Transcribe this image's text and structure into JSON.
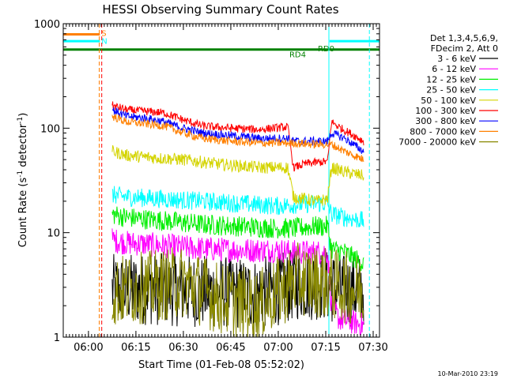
{
  "chart_data": {
    "type": "line",
    "title": "HESSI Observing Summary Count Rates",
    "xlabel": "Start Time (01-Feb-08 05:52:02)",
    "ylabel_main": "Count Rate (s",
    "ylabel_sup1": "-1",
    "ylabel_mid": " detector",
    "ylabel_sup2": "-1",
    "ylabel_end": ")",
    "yscale": "log",
    "ylim": [
      1,
      1000
    ],
    "xlim": [
      5.8672,
      7.5333
    ],
    "x_ticks": [
      {
        "value": 6.0,
        "label": "06:00"
      },
      {
        "value": 6.25,
        "label": "06:15"
      },
      {
        "value": 6.5,
        "label": "06:30"
      },
      {
        "value": 6.75,
        "label": "06:45"
      },
      {
        "value": 7.0,
        "label": "07:00"
      },
      {
        "value": 7.25,
        "label": "07:15"
      },
      {
        "value": 7.5,
        "label": "07:30"
      }
    ],
    "y_ticks": [
      {
        "value": 1,
        "label": "1"
      },
      {
        "value": 10,
        "label": "10"
      },
      {
        "value": 100,
        "label": "100"
      },
      {
        "value": 1000,
        "label": "1000"
      }
    ],
    "legend_header": [
      "Det 1,3,4,5,6,9,",
      "FDecim 2, Att 0"
    ],
    "legend_placement": "right",
    "series": [
      {
        "name": "3 - 6 keV",
        "color": "#000000",
        "noise": 0.35,
        "points": [
          [
            6.125,
            2.8
          ],
          [
            6.3,
            2.9
          ],
          [
            6.5,
            2.8
          ],
          [
            6.7,
            2.7
          ],
          [
            6.9,
            2.6
          ],
          [
            7.1,
            3.2
          ],
          [
            7.22,
            3.2
          ],
          [
            7.35,
            2.8
          ],
          [
            7.45,
            2.8
          ]
        ]
      },
      {
        "name": "6 - 12 keV",
        "color": "#ff00ff",
        "noise": 0.12,
        "points": [
          [
            6.125,
            8.5
          ],
          [
            6.2,
            8.0
          ],
          [
            6.4,
            7.5
          ],
          [
            6.6,
            7.0
          ],
          [
            6.8,
            6.8
          ],
          [
            7.0,
            6.8
          ],
          [
            7.08,
            6.5
          ],
          [
            7.2,
            6.5
          ],
          [
            7.26,
            6.5
          ],
          [
            7.28,
            2.0
          ],
          [
            7.32,
            1.5
          ],
          [
            7.45,
            1.3
          ]
        ]
      },
      {
        "name": "12 - 25 keV",
        "color": "#00ee00",
        "noise": 0.1,
        "points": [
          [
            6.125,
            15.0
          ],
          [
            6.2,
            14.0
          ],
          [
            6.4,
            13.0
          ],
          [
            6.6,
            12.0
          ],
          [
            6.8,
            11.5
          ],
          [
            7.0,
            11.0
          ],
          [
            7.08,
            11.0
          ],
          [
            7.2,
            11.5
          ],
          [
            7.26,
            11.5
          ],
          [
            7.28,
            7.0
          ],
          [
            7.35,
            6.5
          ],
          [
            7.45,
            5.0
          ]
        ]
      },
      {
        "name": "25 - 50 keV",
        "color": "#00ffff",
        "noise": 0.09,
        "points": [
          [
            6.125,
            23.0
          ],
          [
            6.2,
            22.0
          ],
          [
            6.4,
            21.0
          ],
          [
            6.6,
            20.0
          ],
          [
            6.8,
            19.0
          ],
          [
            7.0,
            18.0
          ],
          [
            7.08,
            18.5
          ],
          [
            7.2,
            19.0
          ],
          [
            7.26,
            19.0
          ],
          [
            7.28,
            15.0
          ],
          [
            7.35,
            14.0
          ],
          [
            7.45,
            13.0
          ]
        ]
      },
      {
        "name": "50 - 100 keV",
        "color": "#d4d400",
        "noise": 0.06,
        "points": [
          [
            6.125,
            60.0
          ],
          [
            6.2,
            55.0
          ],
          [
            6.35,
            52.0
          ],
          [
            6.5,
            50.0
          ],
          [
            6.7,
            45.0
          ],
          [
            6.9,
            42.0
          ],
          [
            7.05,
            42.0
          ],
          [
            7.08,
            22.0
          ],
          [
            7.2,
            20.0
          ],
          [
            7.26,
            21.0
          ],
          [
            7.28,
            42.0
          ],
          [
            7.35,
            38.0
          ],
          [
            7.45,
            35.0
          ]
        ]
      },
      {
        "name": "100 - 300 keV",
        "color": "#ff0000",
        "noise": 0.04,
        "points": [
          [
            6.125,
            165.0
          ],
          [
            6.2,
            150.0
          ],
          [
            6.3,
            145.0
          ],
          [
            6.4,
            140.0
          ],
          [
            6.5,
            120.0
          ],
          [
            6.6,
            105.0
          ],
          [
            6.75,
            100.0
          ],
          [
            6.9,
            97.0
          ],
          [
            7.05,
            103.0
          ],
          [
            7.08,
            42.0
          ],
          [
            7.15,
            46.0
          ],
          [
            7.26,
            48.0
          ],
          [
            7.28,
            115.0
          ],
          [
            7.33,
            100.0
          ],
          [
            7.4,
            85.0
          ],
          [
            7.45,
            75.0
          ]
        ]
      },
      {
        "name": "300 - 800 keV",
        "color": "#0000ff",
        "noise": 0.04,
        "points": [
          [
            6.125,
            150.0
          ],
          [
            6.2,
            130.0
          ],
          [
            6.3,
            125.0
          ],
          [
            6.4,
            115.0
          ],
          [
            6.5,
            100.0
          ],
          [
            6.6,
            90.0
          ],
          [
            6.75,
            85.0
          ],
          [
            6.9,
            80.0
          ],
          [
            7.05,
            80.0
          ],
          [
            7.08,
            75.0
          ],
          [
            7.2,
            75.0
          ],
          [
            7.26,
            75.0
          ],
          [
            7.28,
            90.0
          ],
          [
            7.35,
            80.0
          ],
          [
            7.42,
            65.0
          ],
          [
            7.45,
            60.0
          ]
        ]
      },
      {
        "name": "800 - 7000 keV",
        "color": "#ff8000",
        "noise": 0.04,
        "points": [
          [
            6.125,
            130.0
          ],
          [
            6.2,
            115.0
          ],
          [
            6.3,
            110.0
          ],
          [
            6.4,
            105.0
          ],
          [
            6.5,
            90.0
          ],
          [
            6.6,
            80.0
          ],
          [
            6.75,
            75.0
          ],
          [
            6.9,
            72.0
          ],
          [
            7.05,
            72.0
          ],
          [
            7.08,
            72.0
          ],
          [
            7.2,
            70.0
          ],
          [
            7.26,
            70.0
          ],
          [
            7.28,
            70.0
          ],
          [
            7.35,
            60.0
          ],
          [
            7.45,
            50.0
          ]
        ]
      },
      {
        "name": "7000 - 20000 keV",
        "color": "#888800",
        "noise": 0.35,
        "points": [
          [
            6.125,
            2.7
          ],
          [
            6.3,
            3.0
          ],
          [
            6.5,
            3.4
          ],
          [
            6.7,
            2.3
          ],
          [
            6.9,
            2.0
          ],
          [
            7.1,
            3.6
          ],
          [
            7.22,
            3.4
          ],
          [
            7.35,
            3.0
          ],
          [
            7.45,
            2.8
          ]
        ]
      }
    ],
    "state_bars": [
      {
        "label": "S",
        "color": "#ff8000",
        "x_from": 5.8672,
        "x_to": 6.06,
        "level": 790
      },
      {
        "label": "N",
        "color": "#00ffff",
        "x_from": 5.8672,
        "x_to": 6.06,
        "level": 680
      },
      {
        "label": "N",
        "color": "#00ffff",
        "x_from": 7.27,
        "x_to": 7.5333,
        "level": 680
      },
      {
        "label": "RD0",
        "color": "#008000",
        "x_from": 5.8672,
        "x_to": 7.5333,
        "level": 565
      }
    ],
    "bar_labels": [
      {
        "text": "S",
        "color": "#ff8000",
        "x": 6.06,
        "level": 820
      },
      {
        "text": "N",
        "color": "#00ffff",
        "x": 6.06,
        "level": 690
      },
      {
        "text": "RD0",
        "color": "#008000",
        "x": 7.2,
        "level": 585
      },
      {
        "text": "RD4",
        "color": "#008000",
        "x": 7.05,
        "level": 510
      }
    ],
    "vlines": [
      {
        "x": 5.8672,
        "color": "#00ffff",
        "style": "solid"
      },
      {
        "x": 6.0567,
        "color": "#ff8000",
        "style": "dashed"
      },
      {
        "x": 6.07,
        "color": "#ff0000",
        "style": "dashed"
      },
      {
        "x": 7.2667,
        "color": "#00ffff",
        "style": "solid"
      },
      {
        "x": 7.48,
        "color": "#00ffff",
        "style": "dashed"
      }
    ],
    "footer_timestamp": "10-Mar-2010 23:19"
  }
}
